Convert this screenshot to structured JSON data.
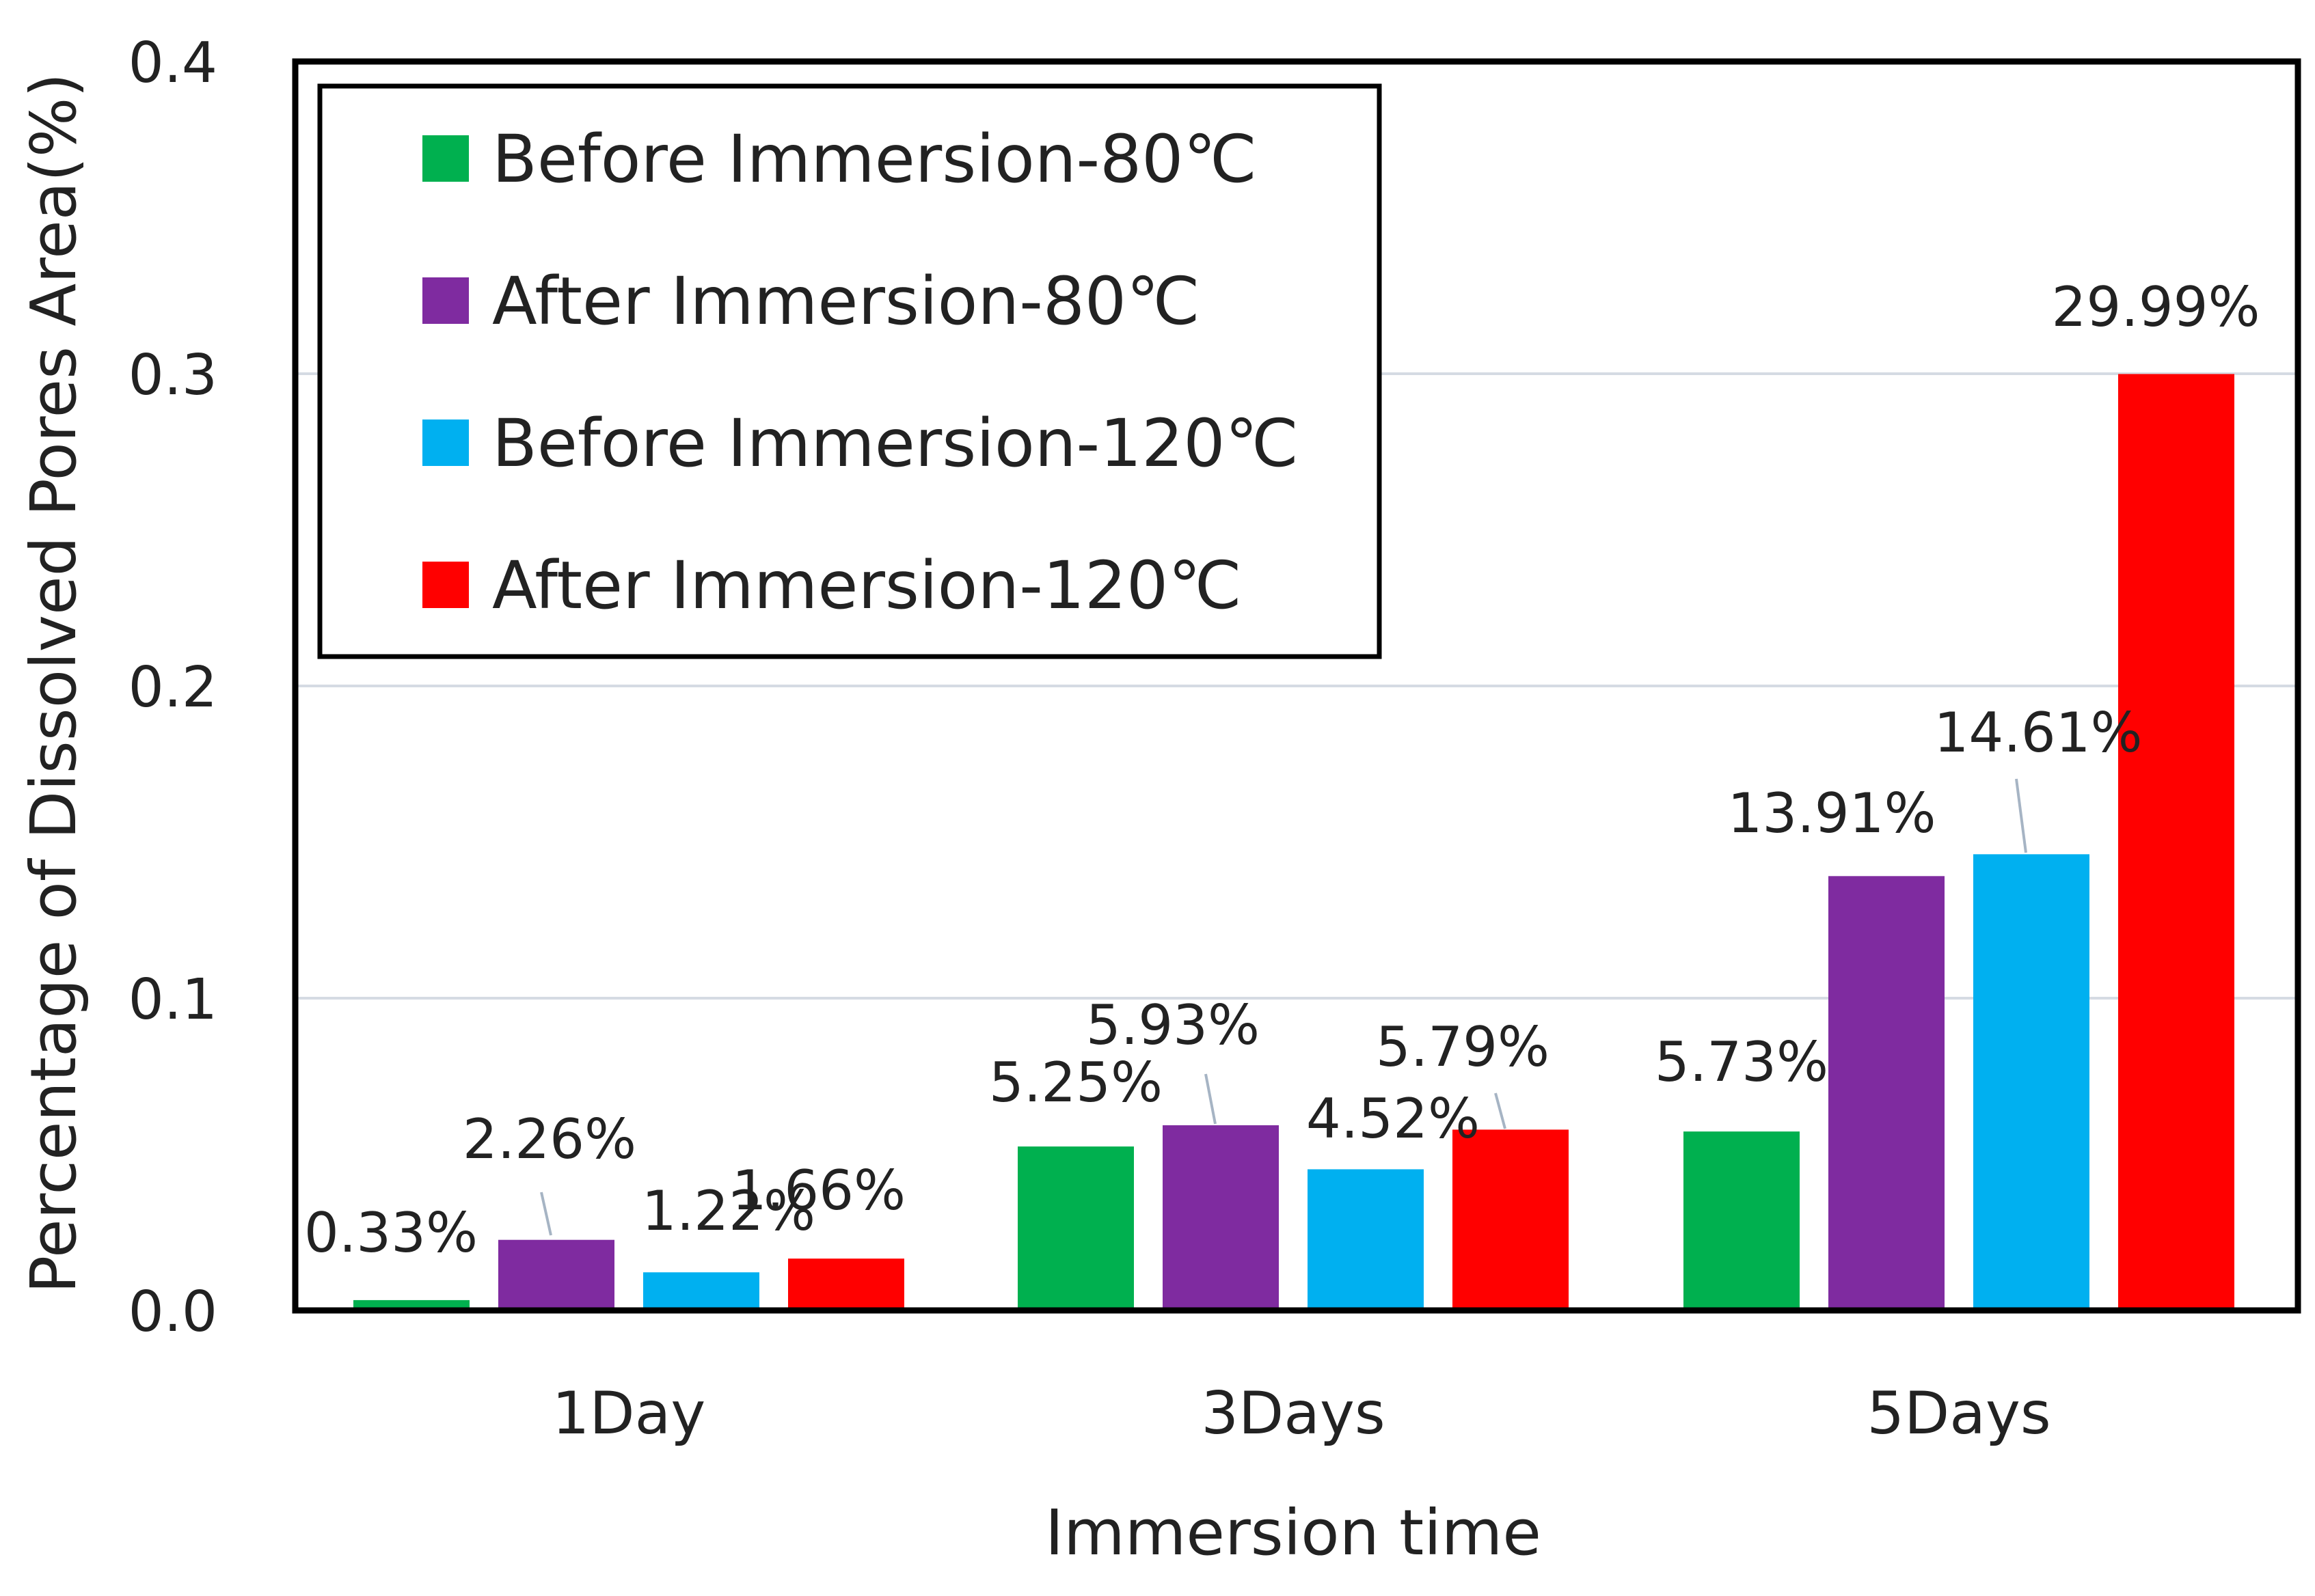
{
  "chart_data": {
    "type": "bar",
    "title": "",
    "xlabel": "Immersion time",
    "ylabel": "Percentage of Dissolved Pores Area(%)",
    "ylim": [
      0,
      0.4
    ],
    "yticks": [
      "0.0",
      "0.1",
      "0.2",
      "0.3",
      "0.4"
    ],
    "grid": true,
    "legend_position": "top-left",
    "categories": [
      "1Day",
      "3Days",
      "5Days"
    ],
    "series": [
      {
        "name": "Before Immersion-80℃",
        "color": "#00b04f",
        "values": [
          0.0033,
          0.0525,
          0.0573
        ],
        "labels": [
          "0.33%",
          "5.25%",
          "5.73%"
        ]
      },
      {
        "name": "After Immersion-80℃",
        "color": "#7f2ba0",
        "values": [
          0.0226,
          0.0593,
          0.1391
        ],
        "labels": [
          "2.26%",
          "5.93%",
          "13.91%"
        ]
      },
      {
        "name": "Before Immersion-120℃",
        "color": "#00b0f0",
        "values": [
          0.0122,
          0.0452,
          0.1461
        ],
        "labels": [
          "1.22%",
          "4.52%",
          "14.61%"
        ]
      },
      {
        "name": "After Immersion-120℃",
        "color": "#ff0000",
        "values": [
          0.0166,
          0.0579,
          0.2999
        ],
        "labels": [
          "1.66%",
          "5.79%",
          "29.99%"
        ]
      }
    ]
  }
}
